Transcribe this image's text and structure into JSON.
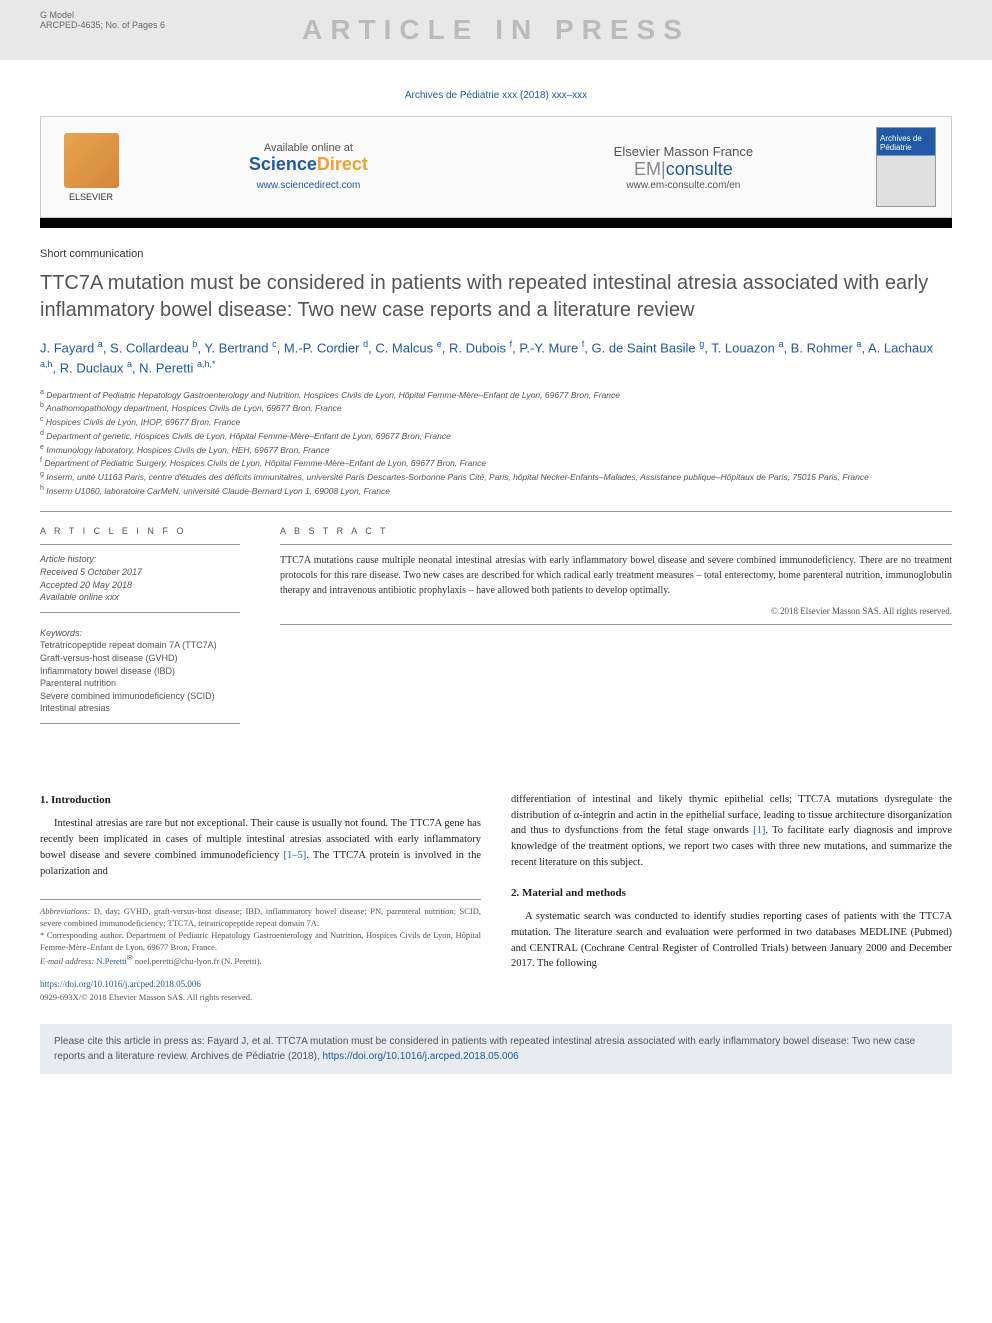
{
  "model_info": {
    "line1": "G Model",
    "line2": "ARCPED-4635; No. of Pages 6"
  },
  "watermark": "ARTICLE IN PRESS",
  "journal_ref": "Archives de Pédiatrie xxx (2018) xxx–xxx",
  "banner": {
    "elsevier": "ELSEVIER",
    "available": "Available online at",
    "sd_science": "Science",
    "sd_direct": "Direct",
    "sd_url": "www.sciencedirect.com",
    "em_publisher": "Elsevier Masson France",
    "em_brand1": "EM",
    "em_brand2": "consulte",
    "em_url": "www.em-consulte.com/en",
    "cover_text": "Archives de Pédiatrie"
  },
  "article_type": "Short communication",
  "title": "TTC7A mutation must be considered in patients with repeated intestinal atresia associated with early inflammatory bowel disease: Two new case reports and a literature review",
  "authors_html": "J. Fayard <sup>a</sup>, S. Collardeau <sup>b</sup>, Y. Bertrand <sup>c</sup>, M.-P. Cordier <sup>d</sup>, C. Malcus <sup>e</sup>, R. Dubois <sup>f</sup>, P.-Y. Mure <sup>f</sup>, G. de Saint Basile <sup>g</sup>, T. Louazon <sup>a</sup>, B. Rohmer <sup>a</sup>, A. Lachaux <sup>a,h</sup>, R. Duclaux <sup>a</sup>, N. Peretti <sup>a,h,*</sup>",
  "affiliations": [
    {
      "sup": "a",
      "text": "Department of Pediatric Hepatology Gastroenterology and Nutrition, Hospices Civils de Lyon, Hôpital Femme-Mère–Enfant de Lyon, 69677 Bron, France"
    },
    {
      "sup": "b",
      "text": "Anathomopathology department, Hospices Civils de Lyon, 69677 Bron, France"
    },
    {
      "sup": "c",
      "text": "Hospices Civils de Lyon, IHOP, 69677 Bron, France"
    },
    {
      "sup": "d",
      "text": "Department of genetic, Hospices Civils de Lyon, Hôpital Femme-Mère–Enfant de Lyon, 69677 Bron, France"
    },
    {
      "sup": "e",
      "text": "Immunology laboratory, Hospices Civils de Lyon, HEH, 69677 Bron, France"
    },
    {
      "sup": "f",
      "text": "Department of Pediatric Surgery, Hospices Civils de Lyon, Hôpital Femme-Mère–Enfant de Lyon, 69677 Bron, France"
    },
    {
      "sup": "g",
      "text": "Inserm, unité U1163 Paris, centre d'études des déficits immunitaires, université Paris Descartes-Sorbonne Paris Cité, Paris, hôpital Necker-Enfants–Malades, Assistance publique–Hôpitaux de Paris, 75015 Paris, France"
    },
    {
      "sup": "h",
      "text": "Inserm U1060, laboratoire CarMeN, université Claude-Bernard Lyon 1, 69008 Lyon, France"
    }
  ],
  "info": {
    "header": "A R T I C L E   I N F O",
    "history_label": "Article history:",
    "received": "Received 5 October 2017",
    "accepted": "Accepted 20 May 2018",
    "available": "Available online xxx",
    "keywords_label": "Keywords:",
    "keywords": [
      "Tetratricopeptide repeat domain 7A (TTC7A)",
      "Graft-versus-host disease (GVHD)",
      "Inflammatory bowel disease (IBD)",
      "Parenteral nutrition",
      "Severe combined immunodeficiency (SCID)",
      "Intestinal atresias"
    ]
  },
  "abstract": {
    "header": "A B S T R A C T",
    "text": "TTC7A mutations cause multiple neonatal intestinal atresias with early inflammatory bowel disease and severe combined immunodeficiency. There are no treatment protocols for this rare disease. Two new cases are described for which radical early treatment measures – total enterectomy, home parenteral nutrition, immunoglobulin therapy and intravenous antibiotic prophylaxis – have allowed both patients to develop optimally.",
    "copyright": "© 2018 Elsevier Masson SAS. All rights reserved."
  },
  "sections": {
    "intro_heading": "1. Introduction",
    "intro_p1": "Intestinal atresias are rare but not exceptional. Their cause is usually not found. The TTC7A gene has recently been implicated in cases of multiple intestinal atresias associated with early inflammatory bowel disease and severe combined immunodeficiency ",
    "intro_ref1": "[1–5]",
    "intro_p1b": ". The TTC7A protein is involved in the polarization and",
    "intro_p2a": "differentiation of intestinal and likely thymic epithelial cells; TTC7A mutations dysregulate the distribution of α-integrin and actin in the epithelial surface, leading to tissue architecture disorganization and thus to dysfunctions from the fetal stage onwards ",
    "intro_ref2": "[1]",
    "intro_p2b": ". To facilitate early diagnosis and improve knowledge of the treatment options, we report two cases with three new mutations, and summarize the recent literature on this subject.",
    "methods_heading": "2. Material and methods",
    "methods_p1": "A systematic search was conducted to identify studies reporting cases of patients with the TTC7A mutation. The literature search and evaluation were performed in two databases MEDLINE (Pubmed) and CENTRAL (Cochrane Central Register of Controlled Trials) between January 2000 and December 2017. The following"
  },
  "footnotes": {
    "abbrev_label": "Abbreviations:",
    "abbrev_text": " D, day; GVHD, graft-versus-host disease; IBD, inflammatory bowel disease; PN, parenteral nutrition; SCID, severe combined immunodeficiency; TTC7A, tetratricopeptide repeat domain 7A.",
    "corresp_label": "* Corresponding author.",
    "corresp_text": " Department of Pediatric Hepatology Gastroenterology and Nutrition, Hospices Civils de Lyon, Hôpital Femme-Mère–Enfant de Lyon, 69677 Bron, France.",
    "email_label": "E-mail address:",
    "email_link": "N.Peretti",
    "email_text": "noel.peretti@chu-lyon.fr (N. Peretti)."
  },
  "doi": {
    "url": "https://doi.org/10.1016/j.arcped.2018.05.006",
    "copyright": "0929-693X/© 2018 Elsevier Masson SAS. All rights reserved."
  },
  "cite_box": {
    "text": "Please cite this article in press as: Fayard J, et al. TTC7A mutation must be considered in patients with repeated intestinal atresia associated with early inflammatory bowel disease: Two new case reports and a literature review. Archives de Pédiatrie (2018), ",
    "link": "https://doi.org/10.1016/j.arcped.2018.05.006"
  },
  "colors": {
    "link_blue": "#2158a8",
    "text_gray": "#555555",
    "watermark_gray": "#bbbbbb",
    "cite_bg": "#e8ecf0"
  }
}
